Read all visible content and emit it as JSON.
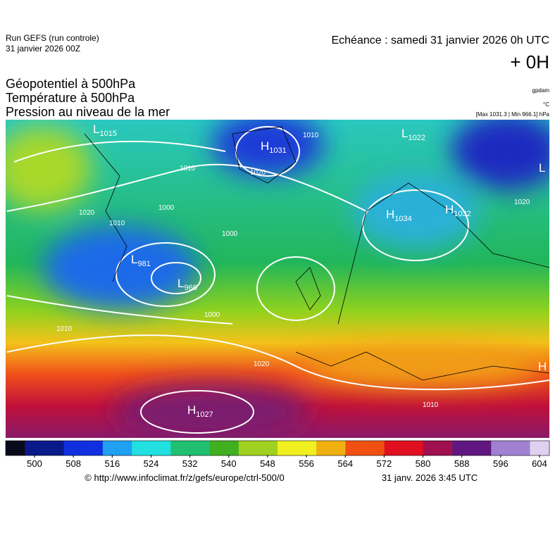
{
  "header": {
    "run": "Run GEFS (run controle)",
    "run_date": "31 janvier 2026 00Z",
    "forecast": "Echéance : samedi 31 janvier 2026 0h UTC",
    "lead": "+ 0H"
  },
  "titles": [
    "Géopotentiel à 500hPa",
    "Température à 500hPa",
    "Pression au niveau de la mer"
  ],
  "units": {
    "geopotential": "gpdam",
    "temperature": "°C",
    "pressure": "[Max 1031.3 | Min 966.1] hPa"
  },
  "centers": [
    {
      "kind": "L",
      "value": "1015"
    },
    {
      "kind": "H",
      "value": "1031"
    },
    {
      "kind": "L",
      "value": "1022"
    },
    {
      "kind": "H",
      "value": "1034"
    },
    {
      "kind": "H",
      "value": "1032"
    },
    {
      "kind": "L",
      "value": "981"
    },
    {
      "kind": "L",
      "value": "966"
    },
    {
      "kind": "H",
      "value": "1027"
    },
    {
      "kind": "L",
      "value": ""
    },
    {
      "kind": "H",
      "value": ""
    }
  ],
  "isobar_labels": [
    "1010",
    "1020",
    "1000",
    "1010",
    "1000",
    "1020",
    "1010",
    "1020",
    "1000",
    "1010",
    "1020",
    "1010"
  ],
  "colorbar": {
    "ticks": [
      500,
      508,
      516,
      524,
      532,
      540,
      548,
      556,
      564,
      572,
      580,
      588,
      596,
      604
    ]
  },
  "footer": {
    "url": "© http://www.infoclimat.fr/z/gefs/europe/ctrl-500/0",
    "date": "31 janv. 2026  3:45 UTC"
  }
}
